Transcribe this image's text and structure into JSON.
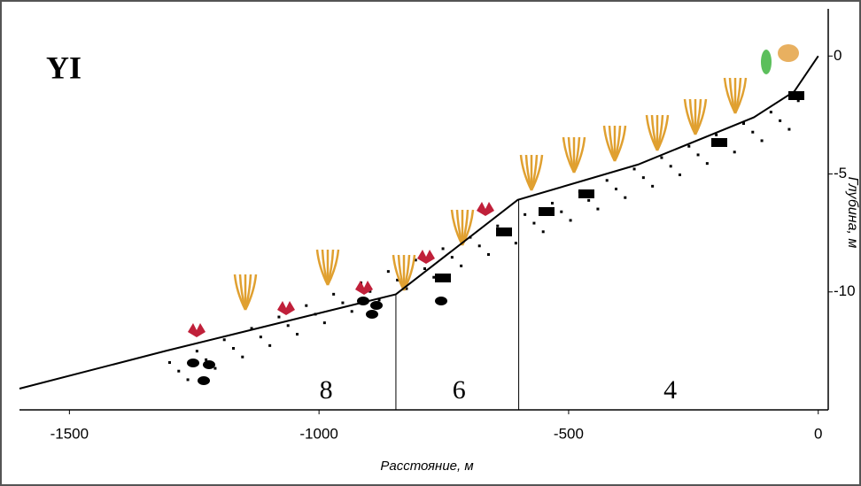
{
  "chart_data": {
    "type": "line",
    "title": "YI",
    "x_label": "Расстояние, м",
    "y_label": "Глубина, м",
    "x": [
      -1600,
      -1307,
      -846,
      -602,
      -361,
      -129,
      -48,
      0
    ],
    "series": [
      {
        "color": "#000000",
        "values": [
          -14.1,
          -12.5,
          -10.1,
          -6.1,
          -4.6,
          -2.6,
          -1.5,
          0
        ]
      }
    ],
    "zone_boundaries": [
      -846,
      -600
    ],
    "zones": [
      "8",
      "6",
      "4"
    ],
    "xlim": [
      -1600,
      20
    ],
    "xticks": [
      -1500,
      -1000,
      -500,
      0
    ],
    "ylim": [
      -15,
      2
    ],
    "yticks": [
      0,
      -5,
      -10
    ]
  }
}
